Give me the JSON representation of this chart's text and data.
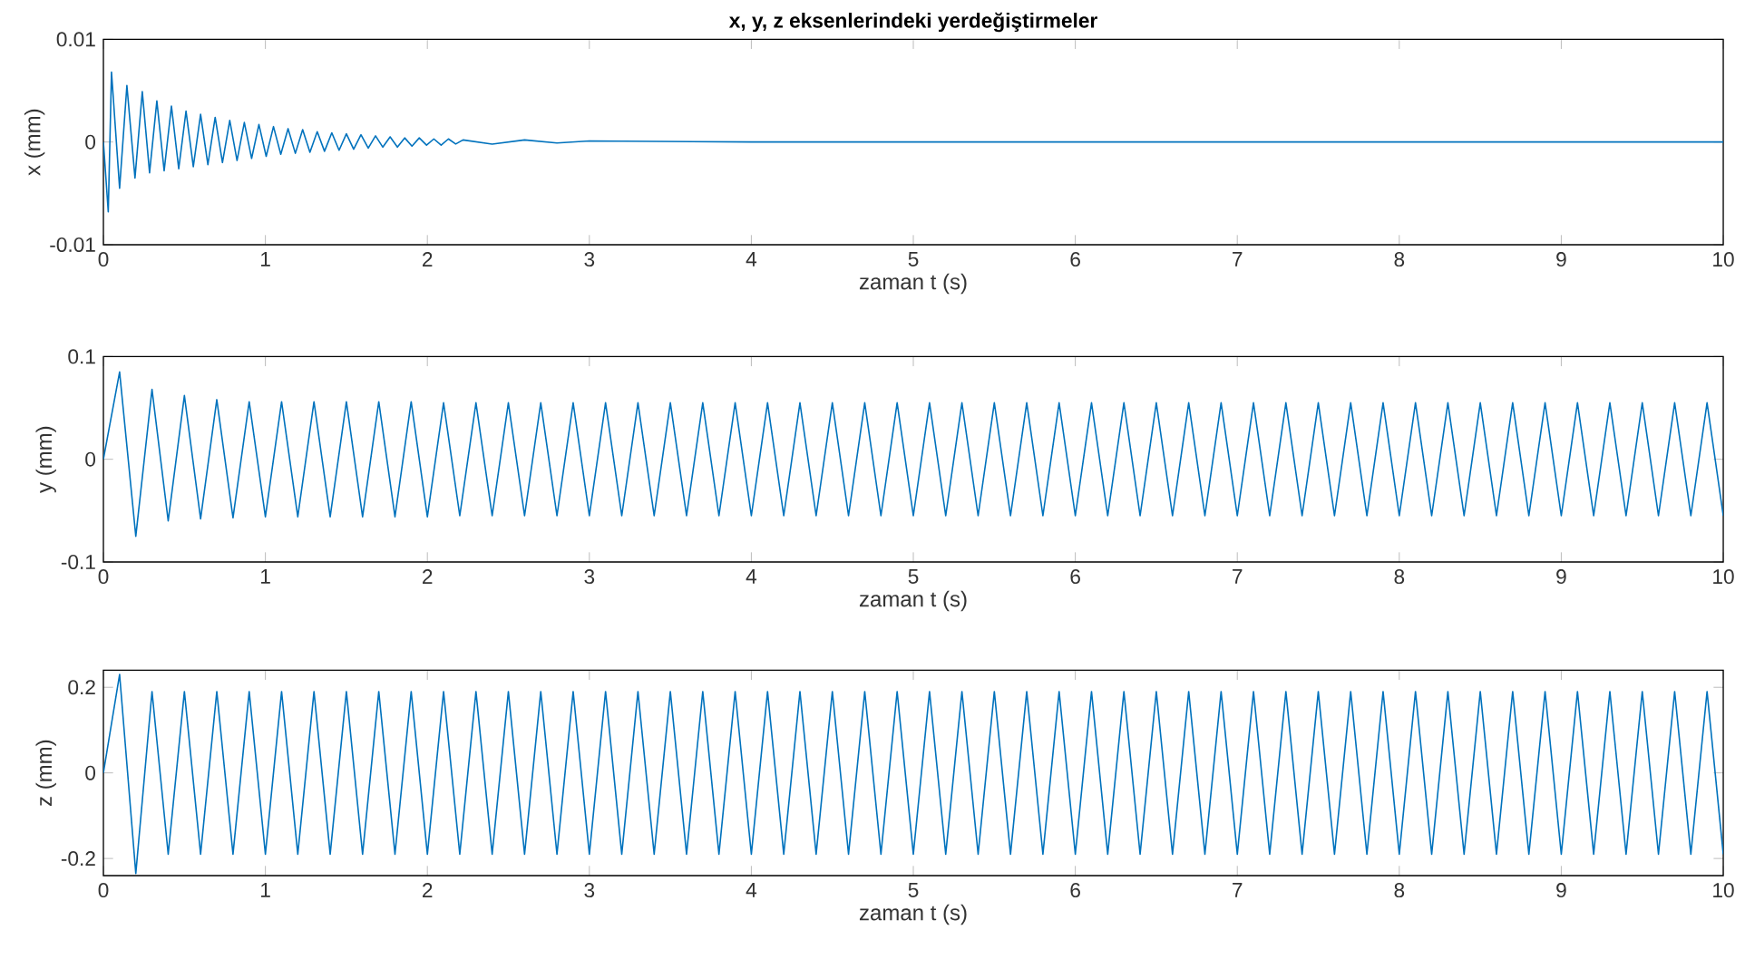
{
  "chart_data": [
    {
      "type": "line",
      "title": "x, y, z eksenlerindeki yerdeğiştirmeler",
      "xlabel": "zaman t (s)",
      "ylabel": "x  (mm)",
      "x": [
        0,
        0.03,
        0.05,
        0.1,
        0.145,
        0.195,
        0.24,
        0.285,
        0.33,
        0.375,
        0.42,
        0.465,
        0.51,
        0.555,
        0.6,
        0.645,
        0.69,
        0.735,
        0.78,
        0.825,
        0.87,
        0.915,
        0.96,
        1.005,
        1.05,
        1.095,
        1.14,
        1.185,
        1.23,
        1.275,
        1.32,
        1.365,
        1.41,
        1.455,
        1.5,
        1.545,
        1.59,
        1.635,
        1.68,
        1.725,
        1.77,
        1.815,
        1.86,
        1.905,
        1.95,
        1.995,
        2.04,
        2.085,
        2.13,
        2.175,
        2.22,
        2.4,
        2.6,
        2.8,
        3.0,
        4.0,
        10
      ],
      "series": [
        {
          "color": "#0072bd",
          "values": [
            0,
            -0.0068,
            0.0068,
            -0.0045,
            0.0055,
            -0.0035,
            0.0049,
            -0.003,
            0.004,
            -0.0028,
            0.0035,
            -0.0026,
            0.003,
            -0.0024,
            0.0027,
            -0.0022,
            0.0024,
            -0.002,
            0.0021,
            -0.0018,
            0.0019,
            -0.0016,
            0.0017,
            -0.0014,
            0.0015,
            -0.0012,
            0.0013,
            -0.0011,
            0.0012,
            -0.001,
            0.001,
            -0.0009,
            0.0009,
            -0.0008,
            0.0008,
            -0.0007,
            0.0007,
            -0.0006,
            0.0006,
            -0.0005,
            0.0005,
            -0.0005,
            0.0004,
            -0.0004,
            0.0004,
            -0.0003,
            0.0003,
            -0.0003,
            0.0003,
            -0.0002,
            0.0002,
            -0.0002,
            0.0002,
            -0.0001,
            0.0001,
            0,
            0
          ]
        }
      ],
      "xlim": [
        0,
        10
      ],
      "ylim": [
        -0.01,
        0.01
      ],
      "xticks": [
        0,
        1,
        2,
        3,
        4,
        5,
        6,
        7,
        8,
        9,
        10
      ],
      "yticks": [
        -0.01,
        0,
        0.01
      ]
    },
    {
      "type": "line",
      "xlabel": "zaman t (s)",
      "ylabel": "y  (mm)",
      "x": [
        0,
        0.1,
        0.2,
        0.3,
        0.4,
        0.5,
        0.6,
        0.7,
        0.8,
        0.9,
        1,
        1.1,
        1.2,
        1.3,
        1.4,
        1.5,
        1.6,
        1.7,
        1.8,
        1.9,
        2,
        2.1,
        2.2,
        2.3,
        2.4,
        2.5,
        2.6,
        2.7,
        2.8,
        2.9,
        3,
        3.1,
        3.2,
        3.3,
        3.4,
        3.5,
        3.6,
        3.7,
        3.8,
        3.9,
        4,
        4.1,
        4.2,
        4.3,
        4.4,
        4.5,
        4.6,
        4.7,
        4.8,
        4.9,
        5,
        5.1,
        5.2,
        5.3,
        5.4,
        5.5,
        5.6,
        5.7,
        5.8,
        5.9,
        6,
        6.1,
        6.2,
        6.3,
        6.4,
        6.5,
        6.6,
        6.7,
        6.8,
        6.9,
        7,
        7.1,
        7.2,
        7.3,
        7.4,
        7.5,
        7.6,
        7.7,
        7.8,
        7.9,
        8,
        8.1,
        8.2,
        8.3,
        8.4,
        8.5,
        8.6,
        8.7,
        8.8,
        8.9,
        9,
        9.1,
        9.2,
        9.3,
        9.4,
        9.5,
        9.6,
        9.7,
        9.8,
        9.9,
        10
      ],
      "series": [
        {
          "color": "#0072bd",
          "values": [
            0,
            0.085,
            -0.075,
            0.068,
            -0.06,
            0.062,
            -0.058,
            0.058,
            -0.057,
            0.056,
            -0.056,
            0.056,
            -0.056,
            0.056,
            -0.056,
            0.056,
            -0.056,
            0.056,
            -0.056,
            0.056,
            -0.056,
            0.055,
            -0.055,
            0.055,
            -0.055,
            0.055,
            -0.055,
            0.055,
            -0.055,
            0.055,
            -0.055,
            0.055,
            -0.055,
            0.055,
            -0.055,
            0.055,
            -0.055,
            0.055,
            -0.055,
            0.055,
            -0.055,
            0.055,
            -0.055,
            0.055,
            -0.055,
            0.055,
            -0.055,
            0.055,
            -0.055,
            0.055,
            -0.055,
            0.055,
            -0.055,
            0.055,
            -0.055,
            0.055,
            -0.055,
            0.055,
            -0.055,
            0.055,
            -0.055,
            0.055,
            -0.055,
            0.055,
            -0.055,
            0.055,
            -0.055,
            0.055,
            -0.055,
            0.055,
            -0.055,
            0.055,
            -0.055,
            0.055,
            -0.055,
            0.055,
            -0.055,
            0.055,
            -0.055,
            0.055,
            -0.055,
            0.055,
            -0.055,
            0.055,
            -0.055,
            0.055,
            -0.055,
            0.055,
            -0.055,
            0.055,
            -0.055,
            0.055,
            -0.055,
            0.055,
            -0.055,
            0.055,
            -0.055,
            0.055,
            -0.055,
            0.055,
            -0.055
          ]
        }
      ],
      "xlim": [
        0,
        10
      ],
      "ylim": [
        -0.1,
        0.1
      ],
      "xticks": [
        0,
        1,
        2,
        3,
        4,
        5,
        6,
        7,
        8,
        9,
        10
      ],
      "yticks": [
        -0.1,
        0,
        0.1
      ]
    },
    {
      "type": "line",
      "xlabel": "zaman t (s)",
      "ylabel": "z  (mm)",
      "x": [
        0,
        0.1,
        0.2,
        0.3,
        0.4,
        0.5,
        0.6,
        0.7,
        0.8,
        0.9,
        1,
        1.1,
        1.2,
        1.3,
        1.4,
        1.5,
        1.6,
        1.7,
        1.8,
        1.9,
        2,
        2.1,
        2.2,
        2.3,
        2.4,
        2.5,
        2.6,
        2.7,
        2.8,
        2.9,
        3,
        3.1,
        3.2,
        3.3,
        3.4,
        3.5,
        3.6,
        3.7,
        3.8,
        3.9,
        4,
        4.1,
        4.2,
        4.3,
        4.4,
        4.5,
        4.6,
        4.7,
        4.8,
        4.9,
        5,
        5.1,
        5.2,
        5.3,
        5.4,
        5.5,
        5.6,
        5.7,
        5.8,
        5.9,
        6,
        6.1,
        6.2,
        6.3,
        6.4,
        6.5,
        6.6,
        6.7,
        6.8,
        6.9,
        7,
        7.1,
        7.2,
        7.3,
        7.4,
        7.5,
        7.6,
        7.7,
        7.8,
        7.9,
        8,
        8.1,
        8.2,
        8.3,
        8.4,
        8.5,
        8.6,
        8.7,
        8.8,
        8.9,
        9,
        9.1,
        9.2,
        9.3,
        9.4,
        9.5,
        9.6,
        9.7,
        9.8,
        9.9,
        10
      ],
      "series": [
        {
          "color": "#0072bd",
          "values": [
            0,
            0.23,
            -0.235,
            0.19,
            -0.19,
            0.19,
            -0.19,
            0.19,
            -0.19,
            0.19,
            -0.19,
            0.19,
            -0.19,
            0.19,
            -0.19,
            0.19,
            -0.19,
            0.19,
            -0.19,
            0.19,
            -0.19,
            0.19,
            -0.19,
            0.19,
            -0.19,
            0.19,
            -0.19,
            0.19,
            -0.19,
            0.19,
            -0.19,
            0.19,
            -0.19,
            0.19,
            -0.19,
            0.19,
            -0.19,
            0.19,
            -0.19,
            0.19,
            -0.19,
            0.19,
            -0.19,
            0.19,
            -0.19,
            0.19,
            -0.19,
            0.19,
            -0.19,
            0.19,
            -0.19,
            0.19,
            -0.19,
            0.19,
            -0.19,
            0.19,
            -0.19,
            0.19,
            -0.19,
            0.19,
            -0.19,
            0.19,
            -0.19,
            0.19,
            -0.19,
            0.19,
            -0.19,
            0.19,
            -0.19,
            0.19,
            -0.19,
            0.19,
            -0.19,
            0.19,
            -0.19,
            0.19,
            -0.19,
            0.19,
            -0.19,
            0.19,
            -0.19,
            0.19,
            -0.19,
            0.19,
            -0.19,
            0.19,
            -0.19,
            0.19,
            -0.19,
            0.19,
            -0.19,
            0.19,
            -0.19,
            0.19,
            -0.19,
            0.19,
            -0.19,
            0.19,
            -0.19,
            0.19,
            -0.19
          ]
        }
      ],
      "xlim": [
        0,
        10
      ],
      "ylim": [
        -0.24,
        0.24
      ],
      "xticks": [
        0,
        1,
        2,
        3,
        4,
        5,
        6,
        7,
        8,
        9,
        10
      ],
      "yticks": [
        -0.2,
        0,
        0.2
      ]
    }
  ]
}
